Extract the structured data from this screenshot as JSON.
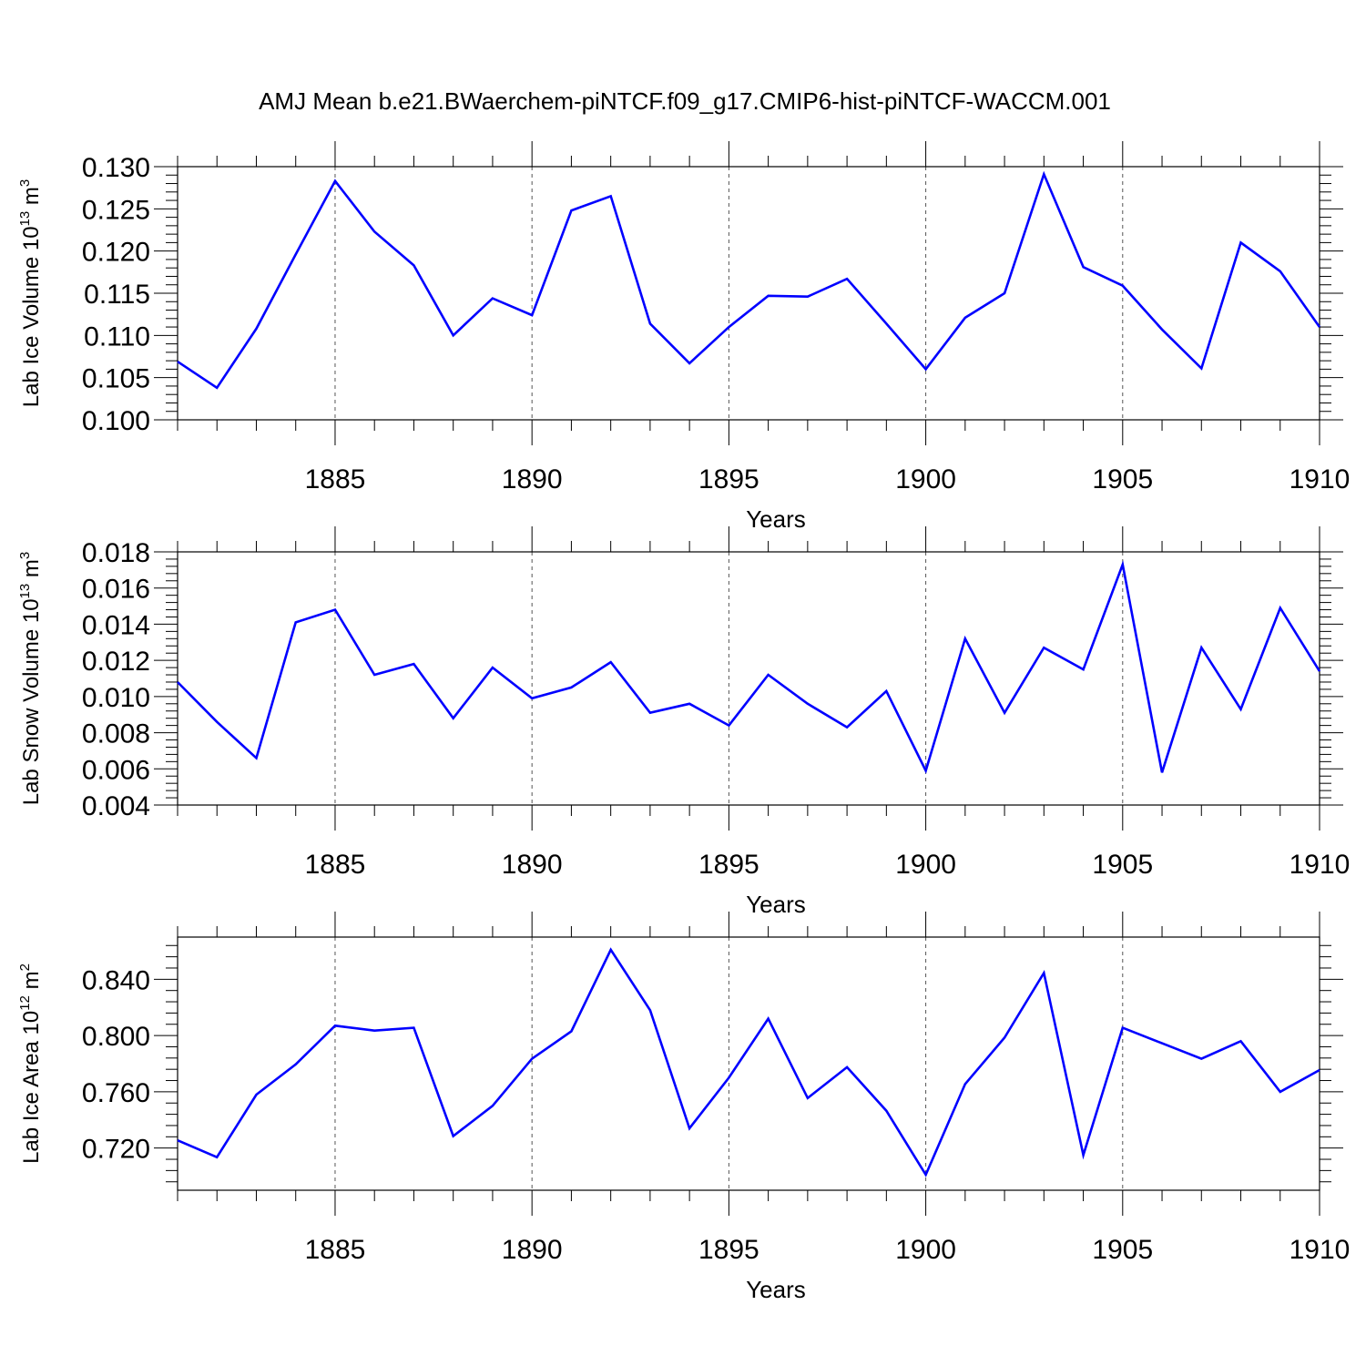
{
  "figure_title": "AMJ Mean b.e21.BWaerchem-piNTCF.f09_g17.CMIP6-hist-piNTCF-WACCM.001",
  "line_color": "#0000ff",
  "chart_data": [
    {
      "type": "line",
      "ylabel_main": "Lab Ice Volume 10",
      "ylabel_exp": "13",
      "ylabel_unit": " m",
      "ylabel_unit_exp": "3",
      "xlabel": "Years",
      "xlim": [
        1881,
        1910
      ],
      "ylim": [
        0.1,
        0.13
      ],
      "yticks": [
        0.1,
        0.105,
        0.11,
        0.115,
        0.12,
        0.125,
        0.13
      ],
      "ytick_labels": [
        "0.100",
        "0.105",
        "0.110",
        "0.115",
        "0.120",
        "0.125",
        "0.130"
      ],
      "xticks": [
        1885,
        1890,
        1895,
        1900,
        1905,
        1910
      ],
      "xtick_labels": [
        "1885",
        "1890",
        "1895",
        "1900",
        "1905",
        "1910"
      ],
      "x": [
        1881,
        1882,
        1883,
        1884,
        1885,
        1886,
        1887,
        1888,
        1889,
        1890,
        1891,
        1892,
        1893,
        1894,
        1895,
        1896,
        1897,
        1898,
        1899,
        1900,
        1901,
        1902,
        1903,
        1904,
        1905,
        1906,
        1907,
        1908,
        1909,
        1910
      ],
      "y": [
        0.1069,
        0.1038,
        0.1108,
        0.1196,
        0.1283,
        0.1223,
        0.1183,
        0.11,
        0.1144,
        0.1124,
        0.1248,
        0.1265,
        0.1114,
        0.1067,
        0.111,
        0.1147,
        0.1146,
        0.1167,
        0.1114,
        0.106,
        0.1121,
        0.115,
        0.1291,
        0.1181,
        0.1159,
        0.1107,
        0.1061,
        0.121,
        0.1176,
        0.111
      ]
    },
    {
      "type": "line",
      "ylabel_main": "Lab Snow Volume 10",
      "ylabel_exp": "13",
      "ylabel_unit": " m",
      "ylabel_unit_exp": "3",
      "xlabel": "Years",
      "xlim": [
        1881,
        1910
      ],
      "ylim": [
        0.004,
        0.018
      ],
      "yticks": [
        0.004,
        0.006,
        0.008,
        0.01,
        0.012,
        0.014,
        0.016,
        0.018
      ],
      "ytick_labels": [
        "0.004",
        "0.006",
        "0.008",
        "0.010",
        "0.012",
        "0.014",
        "0.016",
        "0.018"
      ],
      "xticks": [
        1885,
        1890,
        1895,
        1900,
        1905,
        1910
      ],
      "xtick_labels": [
        "1885",
        "1890",
        "1895",
        "1900",
        "1905",
        "1910"
      ],
      "x": [
        1881,
        1882,
        1883,
        1884,
        1885,
        1886,
        1887,
        1888,
        1889,
        1890,
        1891,
        1892,
        1893,
        1894,
        1895,
        1896,
        1897,
        1898,
        1899,
        1900,
        1901,
        1902,
        1903,
        1904,
        1905,
        1906,
        1907,
        1908,
        1909,
        1910
      ],
      "y": [
        0.0108,
        0.0086,
        0.0066,
        0.0141,
        0.0148,
        0.0112,
        0.0118,
        0.0088,
        0.0116,
        0.0099,
        0.0105,
        0.0119,
        0.0091,
        0.0096,
        0.0084,
        0.0112,
        0.0096,
        0.0083,
        0.0103,
        0.0059,
        0.0132,
        0.0091,
        0.0127,
        0.0115,
        0.0173,
        0.0058,
        0.0127,
        0.0093,
        0.0149,
        0.0114
      ]
    },
    {
      "type": "line",
      "ylabel_main": "Lab Ice Area 10",
      "ylabel_exp": "12",
      "ylabel_unit": " m",
      "ylabel_unit_exp": "2",
      "xlabel": "Years",
      "xlim": [
        1881,
        1910
      ],
      "ylim": [
        0.69,
        0.87
      ],
      "yticks": [
        0.72,
        0.76,
        0.8,
        0.84
      ],
      "ytick_labels": [
        "0.720",
        "0.760",
        "0.800",
        "0.840"
      ],
      "xticks": [
        1885,
        1890,
        1895,
        1900,
        1905,
        1910
      ],
      "xtick_labels": [
        "1885",
        "1890",
        "1895",
        "1900",
        "1905",
        "1910"
      ],
      "x": [
        1881,
        1882,
        1883,
        1884,
        1885,
        1886,
        1887,
        1888,
        1889,
        1890,
        1891,
        1892,
        1893,
        1894,
        1895,
        1896,
        1897,
        1898,
        1899,
        1900,
        1901,
        1902,
        1903,
        1904,
        1905,
        1906,
        1907,
        1908,
        1909,
        1910
      ],
      "y": [
        0.7255,
        0.7135,
        0.758,
        0.7795,
        0.807,
        0.8035,
        0.8055,
        0.7285,
        0.75,
        0.7835,
        0.803,
        0.861,
        0.818,
        0.734,
        0.77,
        0.812,
        0.7555,
        0.7775,
        0.7465,
        0.701,
        0.7655,
        0.7985,
        0.8445,
        0.715,
        0.8055,
        0.7945,
        0.7835,
        0.796,
        0.76,
        0.7755
      ]
    }
  ]
}
